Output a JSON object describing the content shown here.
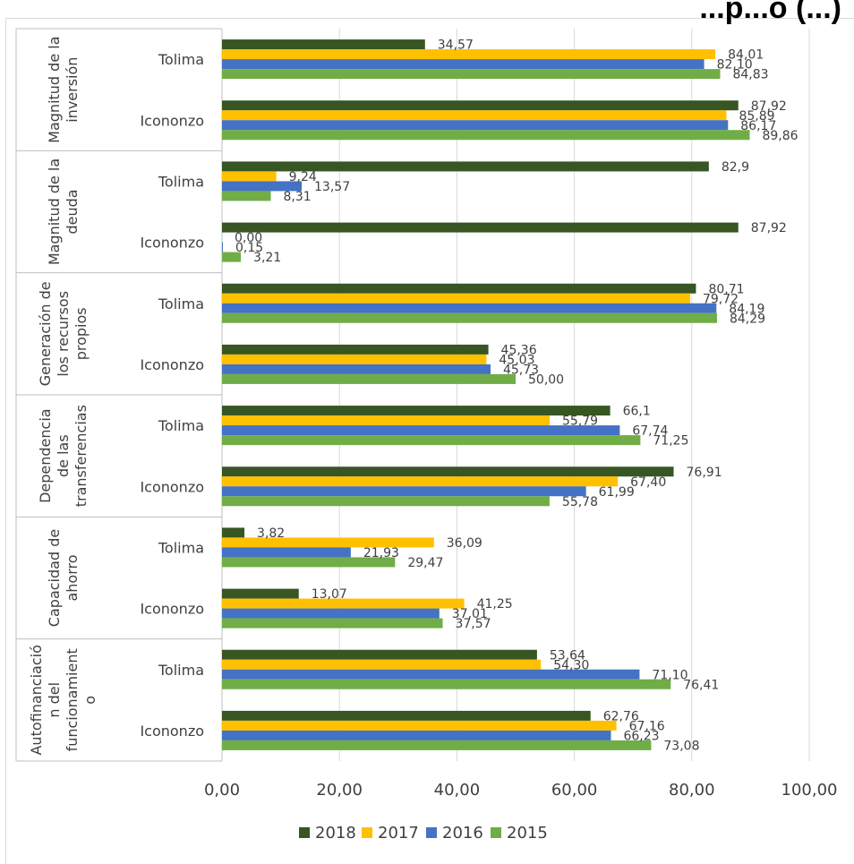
{
  "chart_data": {
    "type": "bar",
    "orientation": "horizontal",
    "title": "...p...o (...)",
    "xlim": [
      0,
      100
    ],
    "x_ticks": [
      "0,00",
      "20,00",
      "40,00",
      "60,00",
      "80,00",
      "100,00"
    ],
    "grid": true,
    "legend_position": "bottom",
    "series": [
      {
        "name": "2018",
        "color": "#375623"
      },
      {
        "name": "2017",
        "color": "#ffc000"
      },
      {
        "name": "2016",
        "color": "#4472c4"
      },
      {
        "name": "2015",
        "color": "#70ad47"
      }
    ],
    "groups": [
      {
        "label": "Magnitud de la inversión",
        "label_lines": [
          "Magnitud de la",
          "inversión"
        ],
        "rows": [
          {
            "label": "Tolima",
            "values": [
              34.57,
              84.01,
              82.1,
              84.83
            ],
            "labels": [
              "34,57",
              "84,01",
              "82,10",
              "84,83"
            ]
          },
          {
            "label": "Icononzo",
            "values": [
              87.92,
              85.89,
              86.17,
              89.86
            ],
            "labels": [
              "87,92",
              "85,89",
              "86,17",
              "89,86"
            ]
          }
        ]
      },
      {
        "label": "Magnitud de la deuda",
        "label_lines": [
          "Magnitud de la",
          "deuda"
        ],
        "rows": [
          {
            "label": "Tolima",
            "values": [
              82.9,
              9.24,
              13.57,
              8.31
            ],
            "labels": [
              "82,9",
              "9,24",
              "13,57",
              "8,31"
            ]
          },
          {
            "label": "Icononzo",
            "values": [
              87.92,
              0.0,
              0.15,
              3.21
            ],
            "labels": [
              "87,92",
              "0,00",
              "0,15",
              "3,21"
            ]
          }
        ]
      },
      {
        "label": "Generación de los recursos propios",
        "label_lines": [
          "Generación de",
          "los recursos",
          "propios"
        ],
        "rows": [
          {
            "label": "Tolima",
            "values": [
              80.71,
              79.72,
              84.19,
              84.29
            ],
            "labels": [
              "80,71",
              "79,72",
              "84,19",
              "84,29"
            ]
          },
          {
            "label": "Icononzo",
            "values": [
              45.36,
              45.03,
              45.73,
              50.0
            ],
            "labels": [
              "45,36",
              "45,03",
              "45,73",
              "50,00"
            ]
          }
        ]
      },
      {
        "label": "Dependencia de las transferencias",
        "label_lines": [
          "Dependencia",
          "de las",
          "transferencias"
        ],
        "rows": [
          {
            "label": "Tolima",
            "values": [
              66.1,
              55.79,
              67.74,
              71.25
            ],
            "labels": [
              "66,1",
              "55,79",
              "67,74",
              "71,25"
            ]
          },
          {
            "label": "Icononzo",
            "values": [
              76.91,
              67.4,
              61.99,
              55.78
            ],
            "labels": [
              "76,91",
              "67,40",
              "61,99",
              "55,78"
            ]
          }
        ]
      },
      {
        "label": "Capacidad de ahorro",
        "label_lines": [
          "Capacidad de",
          "ahorro"
        ],
        "rows": [
          {
            "label": "Tolima",
            "values": [
              3.82,
              36.09,
              21.93,
              29.47
            ],
            "labels": [
              "3,82",
              "36,09",
              "21,93",
              "29,47"
            ]
          },
          {
            "label": "Icononzo",
            "values": [
              13.07,
              41.25,
              37.01,
              37.57
            ],
            "labels": [
              "13,07",
              "41,25",
              "37,01",
              "37,57"
            ]
          }
        ]
      },
      {
        "label": "Autofinanciación del funcionamiento",
        "label_lines": [
          "Autofinanciació",
          "n del",
          "funcionamient",
          "o"
        ],
        "rows": [
          {
            "label": "Tolima",
            "values": [
              53.64,
              54.3,
              71.1,
              76.41
            ],
            "labels": [
              "53,64",
              "54,30",
              "71,10",
              "76,41"
            ]
          },
          {
            "label": "Icononzo",
            "values": [
              62.76,
              67.16,
              66.23,
              73.08
            ],
            "labels": [
              "62,76",
              "67,16",
              "66,23",
              "73,08"
            ]
          }
        ]
      }
    ]
  }
}
